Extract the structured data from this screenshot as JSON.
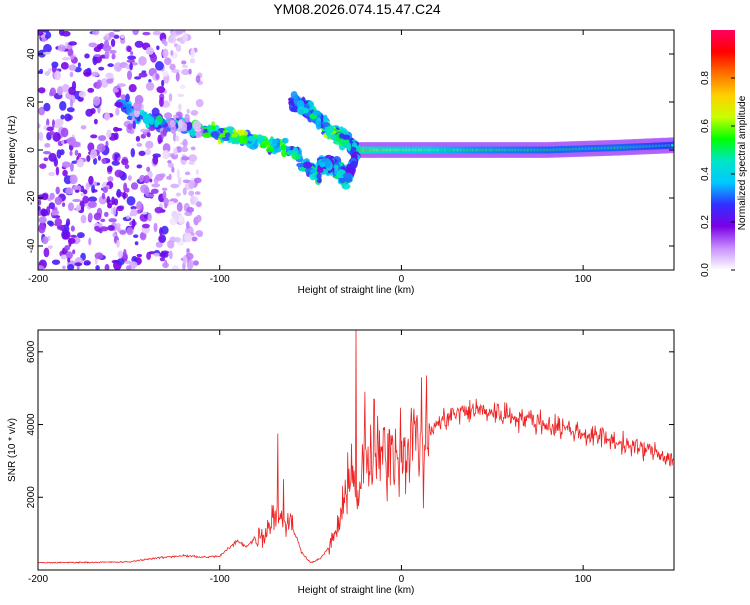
{
  "title": "YM08.2026.074.15.47.C24",
  "chart_data": [
    {
      "type": "heatmap",
      "title": "YM08.2026.074.15.47.C24",
      "xlabel": "Height of straight line (km)",
      "ylabel": "Frequency (Hz)",
      "xlim": [
        -200,
        150
      ],
      "ylim": [
        -50,
        50
      ],
      "x_ticks": [
        -200,
        -100,
        0,
        100
      ],
      "x_tick_labels": [
        "-200",
        "-100",
        "0",
        "100"
      ],
      "y_ticks": [
        -40,
        -20,
        0,
        20,
        40
      ],
      "y_tick_labels": [
        "-40",
        "-20",
        "0",
        "20",
        "40"
      ],
      "colorbar": {
        "label": "Normalized spectral amplitude",
        "range": [
          0,
          1
        ],
        "ticks": [
          0,
          0.2,
          0.4,
          0.6,
          0.8
        ],
        "tick_labels": [
          "0.0",
          "0.2",
          "0.4",
          "0.6",
          "0.8"
        ],
        "colors": [
          "#ffffff",
          "#c890ff",
          "#7a00e6",
          "#3030ff",
          "#00c8ff",
          "#00e6c8",
          "#00ff00",
          "#c8ff00",
          "#ffd000",
          "#ff7000",
          "#ff0000",
          "#ff0060"
        ]
      },
      "features": [
        {
          "name": "carrier",
          "x_range": [
            -25,
            150
          ],
          "freq": [
            0,
            0,
            0,
            0,
            1,
            2
          ],
          "x": [
            -25,
            0,
            40,
            80,
            120,
            150
          ],
          "amplitude": [
            0.85,
            0.7,
            0.6,
            0.55,
            0.55,
            0.5
          ]
        },
        {
          "name": "descending-streak",
          "x": [
            -155,
            -140,
            -120,
            -100,
            -80,
            -60,
            -45
          ],
          "freq": [
            20,
            12,
            10,
            7,
            4,
            0,
            -12
          ],
          "amplitude": [
            0.3,
            0.4,
            0.4,
            0.5,
            0.5,
            0.45,
            0.4
          ]
        },
        {
          "name": "upper-branch",
          "x": [
            -60,
            -50,
            -40,
            -30,
            -25
          ],
          "freq": [
            20,
            16,
            8,
            4,
            0
          ],
          "amplitude": [
            0.3,
            0.4,
            0.5,
            0.45,
            0.4
          ]
        },
        {
          "name": "lower-branch",
          "x": [
            -45,
            -38,
            -30,
            -25
          ],
          "freq": [
            -7,
            -6,
            -12,
            -2
          ],
          "amplitude": [
            0.35,
            0.4,
            0.4,
            0.3
          ]
        },
        {
          "name": "noise-band",
          "x_range": [
            -200,
            -110
          ],
          "freq_range": [
            -50,
            50
          ],
          "amplitude": 0.2
        }
      ]
    },
    {
      "type": "line",
      "xlabel": "Height of straight line (km)",
      "ylabel": "SNR (10 * v/v)",
      "xlim": [
        -200,
        150
      ],
      "ylim": [
        0,
        6600
      ],
      "x_ticks": [
        -200,
        -100,
        0,
        100
      ],
      "x_tick_labels": [
        "-200",
        "-100",
        "0",
        "100"
      ],
      "y_ticks": [
        2000,
        4000,
        6000
      ],
      "y_tick_labels": [
        "2000",
        "4000",
        "6000"
      ],
      "color": "#ee2222",
      "series": [
        {
          "name": "SNR",
          "x": [
            -200,
            -150,
            -140,
            -130,
            -120,
            -110,
            -100,
            -95,
            -90,
            -85,
            -80,
            -75,
            -70,
            -65,
            -60,
            -55,
            -50,
            -45,
            -40,
            -35,
            -30,
            -27,
            -25,
            -23,
            -20,
            -15,
            -10,
            -5,
            0,
            5,
            10,
            15,
            20,
            25,
            30,
            40,
            50,
            60,
            70,
            80,
            90,
            100,
            110,
            120,
            130,
            140,
            150
          ],
          "y": [
            200,
            220,
            300,
            350,
            400,
            350,
            380,
            600,
            800,
            650,
            900,
            1000,
            1600,
            1400,
            1200,
            500,
            200,
            300,
            600,
            1200,
            2000,
            3500,
            1500,
            2500,
            3000,
            2800,
            3200,
            3400,
            3300,
            3600,
            3500,
            3800,
            4000,
            4200,
            4300,
            4400,
            4350,
            4250,
            4150,
            4000,
            3900,
            3750,
            3650,
            3500,
            3350,
            3250,
            3000
          ],
          "spikes": [
            {
              "x": -68,
              "y": 3750
            },
            {
              "x": -65,
              "y": 2500
            },
            {
              "x": -25,
              "y": 6600
            },
            {
              "x": -20,
              "y": 4900
            },
            {
              "x": -15,
              "y": 4700
            },
            {
              "x": 5,
              "y": 4000
            },
            {
              "x": 11,
              "y": 5300
            },
            {
              "x": 12,
              "y": 1700
            }
          ]
        }
      ]
    }
  ]
}
